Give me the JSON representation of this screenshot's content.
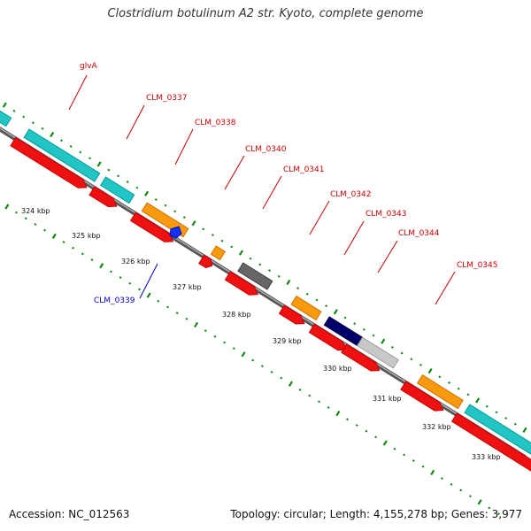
{
  "title": "Clostridium botulinum A2 str. Kyoto, complete genome",
  "footer": {
    "accession": "Accession: NC_012563",
    "summary": "Topology: circular; Length: 4,155,278 bp; Genes: 3,977"
  },
  "colors": {
    "backbone": "#777777",
    "tick": "#118811",
    "label_red": "#cc0000",
    "label_blue": "#0000cc",
    "cyan": "#22c4c4",
    "red": "#ee1111",
    "orange": "#f79a10",
    "gray": "#666666",
    "navy": "#00006b",
    "lightgray": "#c8c8c8",
    "blue": "#1133ff"
  },
  "ticks": [
    "324 kbp",
    "325 kbp",
    "326 kbp",
    "327 kbp",
    "328 kbp",
    "329 kbp",
    "330 kbp",
    "331 kbp",
    "332 kbp",
    "333 kbp"
  ],
  "gene_labels": [
    {
      "name": "glvA",
      "color": "red"
    },
    {
      "name": "CLM_0337",
      "color": "red"
    },
    {
      "name": "CLM_0338",
      "color": "red"
    },
    {
      "name": "CLM_0340",
      "color": "red"
    },
    {
      "name": "CLM_0341",
      "color": "red"
    },
    {
      "name": "CLM_0342",
      "color": "red"
    },
    {
      "name": "CLM_0343",
      "color": "red"
    },
    {
      "name": "CLM_0344",
      "color": "red"
    },
    {
      "name": "CLM_0345",
      "color": "red"
    },
    {
      "name": "CLM_0339",
      "color": "blue"
    }
  ]
}
